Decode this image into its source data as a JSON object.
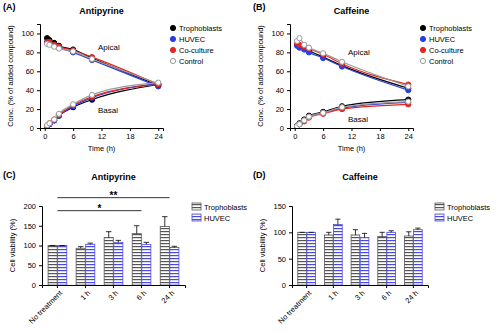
{
  "chart_data": [
    {
      "type": "line",
      "panel_label": "(A)",
      "title": "Antipyrine",
      "x_label": "Time (h)",
      "y_label": "Conc. (% of added compound)",
      "x": [
        0.5,
        1,
        2,
        3,
        6,
        10,
        24
      ],
      "xlim": [
        -1,
        25
      ],
      "xticks": [
        0,
        6,
        12,
        18,
        24
      ],
      "ylim": [
        0,
        110
      ],
      "yticks": [
        0,
        20,
        40,
        60,
        80,
        100
      ],
      "legend": "right",
      "groups": [
        {
          "label": "Apical",
          "series": [
            {
              "name": "Trophoblasts",
              "color": "#000000",
              "marker": "circle",
              "values": [
                95,
                93,
                90,
                87,
                83,
                74,
                45
              ]
            },
            {
              "name": "HUVEC",
              "color": "#2b3ee6",
              "marker": "circle",
              "values": [
                91,
                89,
                87,
                85,
                80,
                72,
                44
              ]
            },
            {
              "name": "Co-culture",
              "color": "#e3261f",
              "marker": "circle",
              "values": [
                90,
                91,
                88,
                86,
                82,
                75,
                46
              ]
            },
            {
              "name": "Control",
              "color": "#9a9a9a",
              "marker": "open-circle",
              "values": [
                89,
                88,
                86,
                84,
                81,
                73,
                47
              ]
            }
          ]
        },
        {
          "label": "Basal",
          "series": [
            {
              "color": "#000000",
              "marker": "circle",
              "values": [
                2,
                4,
                8,
                13,
                22,
                30,
                46
              ]
            },
            {
              "color": "#2b3ee6",
              "marker": "circle",
              "values": [
                2,
                4,
                8,
                13,
                23,
                32,
                47
              ]
            },
            {
              "color": "#e3261f",
              "marker": "circle",
              "values": [
                2,
                5,
                9,
                14,
                24,
                33,
                46
              ]
            },
            {
              "color": "#9a9a9a",
              "marker": "open-circle",
              "values": [
                3,
                5,
                9,
                15,
                25,
                35,
                48
              ]
            }
          ]
        }
      ]
    },
    {
      "type": "line",
      "panel_label": "(B)",
      "title": "Caffeine",
      "x_label": "Time (h)",
      "y_label": "Conc. (% of added compound)",
      "x": [
        0.5,
        1,
        2,
        3,
        6,
        10,
        24
      ],
      "xlim": [
        -1,
        25
      ],
      "xticks": [
        0,
        6,
        12,
        18,
        24
      ],
      "ylim": [
        0,
        110
      ],
      "yticks": [
        0,
        20,
        40,
        60,
        80,
        100
      ],
      "legend": "right",
      "groups": [
        {
          "label": "Apical",
          "series": [
            {
              "name": "Trophoblasts",
              "color": "#000000",
              "marker": "circle",
              "values": [
                88,
                87,
                85,
                82,
                75,
                66,
                42
              ]
            },
            {
              "name": "HUVEC",
              "color": "#2b3ee6",
              "marker": "circle",
              "values": [
                87,
                85,
                83,
                80,
                74,
                65,
                40
              ]
            },
            {
              "name": "Co-culture",
              "color": "#e3261f",
              "marker": "circle",
              "values": [
                90,
                88,
                86,
                84,
                78,
                68,
                46
              ]
            },
            {
              "name": "Control",
              "color": "#9a9a9a",
              "marker": "open-circle",
              "values": [
                92,
                95,
                88,
                85,
                79,
                70,
                44
              ]
            }
          ]
        },
        {
          "label": "Basal",
          "series": [
            {
              "color": "#000000",
              "marker": "circle",
              "values": [
                2,
                5,
                9,
                13,
                17,
                23,
                30
              ]
            },
            {
              "color": "#2b3ee6",
              "marker": "circle",
              "values": [
                2,
                4,
                8,
                12,
                16,
                21,
                27
              ]
            },
            {
              "color": "#e3261f",
              "marker": "circle",
              "values": [
                2,
                4,
                7,
                11,
                15,
                20,
                25
              ]
            },
            {
              "color": "#9a9a9a",
              "marker": "open-circle",
              "values": [
                2,
                4,
                8,
                12,
                16,
                22,
                28
              ]
            }
          ]
        }
      ]
    },
    {
      "type": "bar",
      "panel_label": "(C)",
      "title": "Antipyrine",
      "y_label": "Cell viability (%)",
      "categories": [
        "No treatment",
        "1 h",
        "3 h",
        "6 h",
        "24 h"
      ],
      "ylim": [
        0,
        200
      ],
      "yticks": [
        0,
        50,
        100,
        150,
        200
      ],
      "legend": "right",
      "series": [
        {
          "name": "Trophoblasts",
          "color": "#555555",
          "values": [
            100,
            93,
            120,
            130,
            148
          ],
          "errors": [
            0,
            4,
            15,
            20,
            25
          ]
        },
        {
          "name": "HUVEC",
          "color": "#4a4ae0",
          "values": [
            100,
            103,
            108,
            103,
            95
          ],
          "errors": [
            0,
            3,
            5,
            5,
            3
          ]
        }
      ],
      "annotations": [
        {
          "text": "*",
          "from": 0,
          "to": 3
        },
        {
          "text": "**",
          "from": 0,
          "to": 4
        }
      ]
    },
    {
      "type": "bar",
      "panel_label": "(D)",
      "title": "Caffeine",
      "y_label": "Cell viability (%)",
      "categories": [
        "No treatment",
        "1 h",
        "3 h",
        "6 h",
        "24 h"
      ],
      "ylim": [
        0,
        150
      ],
      "yticks": [
        0,
        50,
        100,
        150
      ],
      "legend": "right",
      "series": [
        {
          "name": "Trophoblasts",
          "color": "#555555",
          "values": [
            100,
            95,
            95,
            92,
            93
          ],
          "errors": [
            0,
            5,
            10,
            8,
            8
          ]
        },
        {
          "name": "HUVEC",
          "color": "#4a4ae0",
          "values": [
            100,
            115,
            90,
            100,
            105
          ],
          "errors": [
            0,
            10,
            8,
            3,
            3
          ]
        }
      ]
    }
  ]
}
